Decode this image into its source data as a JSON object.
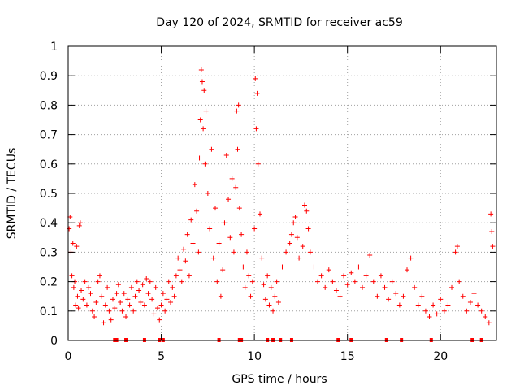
{
  "chart_data": {
    "type": "scatter",
    "title": "Day 120 of 2024, SRMTID for receiver ac59",
    "xlabel": "GPS time / hours",
    "ylabel": "SRMTID / TECUs",
    "xlim": [
      0,
      23
    ],
    "ylim": [
      0,
      1
    ],
    "xticks": [
      0,
      5,
      10,
      15,
      20
    ],
    "xtick_labels": [
      "0",
      "5",
      "10",
      "15",
      "20"
    ],
    "yticks": [
      0,
      0.1,
      0.2,
      0.3,
      0.4,
      0.5,
      0.6,
      0.7,
      0.8,
      0.9,
      1
    ],
    "ytick_labels": [
      "0",
      "0.1",
      "0.2",
      "0.3",
      "0.4",
      "0.5",
      "0.6",
      "0.7",
      "0.8",
      "0.9",
      "1"
    ],
    "grid": true,
    "marker": "+",
    "series_color": "#ff0000",
    "series": [
      {
        "name": "SRMTID",
        "points": [
          [
            0.05,
            0.38
          ],
          [
            0.1,
            0.42
          ],
          [
            0.15,
            0.3
          ],
          [
            0.2,
            0.22
          ],
          [
            0.25,
            0.33
          ],
          [
            0.3,
            0.18
          ],
          [
            0.35,
            0.2
          ],
          [
            0.4,
            0.12
          ],
          [
            0.45,
            0.32
          ],
          [
            0.5,
            0.15
          ],
          [
            0.55,
            0.11
          ],
          [
            0.6,
            0.39
          ],
          [
            0.65,
            0.4
          ],
          [
            0.7,
            0.17
          ],
          [
            0.8,
            0.14
          ],
          [
            0.9,
            0.2
          ],
          [
            1.0,
            0.12
          ],
          [
            1.1,
            0.18
          ],
          [
            1.2,
            0.16
          ],
          [
            1.3,
            0.1
          ],
          [
            1.4,
            0.08
          ],
          [
            1.5,
            0.13
          ],
          [
            1.6,
            0.2
          ],
          [
            1.7,
            0.22
          ],
          [
            1.8,
            0.15
          ],
          [
            1.9,
            0.06
          ],
          [
            2.0,
            0.12
          ],
          [
            2.1,
            0.18
          ],
          [
            2.2,
            0.1
          ],
          [
            2.3,
            0.07
          ],
          [
            2.4,
            0.14
          ],
          [
            2.5,
            0.11
          ],
          [
            2.6,
            0.16
          ],
          [
            2.7,
            0.19
          ],
          [
            2.8,
            0.13
          ],
          [
            2.9,
            0.1
          ],
          [
            3.0,
            0.16
          ],
          [
            3.1,
            0.08
          ],
          [
            3.2,
            0.14
          ],
          [
            3.3,
            0.12
          ],
          [
            3.4,
            0.18
          ],
          [
            3.5,
            0.1
          ],
          [
            3.6,
            0.15
          ],
          [
            3.7,
            0.2
          ],
          [
            3.8,
            0.17
          ],
          [
            3.9,
            0.13
          ],
          [
            4.0,
            0.19
          ],
          [
            4.1,
            0.12
          ],
          [
            4.2,
            0.21
          ],
          [
            4.3,
            0.16
          ],
          [
            4.4,
            0.2
          ],
          [
            4.5,
            0.14
          ],
          [
            4.6,
            0.09
          ],
          [
            4.7,
            0.18
          ],
          [
            4.8,
            0.11
          ],
          [
            4.9,
            0.07
          ],
          [
            5.0,
            0.12
          ],
          [
            5.1,
            0.16
          ],
          [
            5.2,
            0.1
          ],
          [
            5.3,
            0.14
          ],
          [
            5.4,
            0.2
          ],
          [
            5.5,
            0.13
          ],
          [
            5.6,
            0.18
          ],
          [
            5.7,
            0.15
          ],
          [
            5.8,
            0.22
          ],
          [
            5.9,
            0.28
          ],
          [
            6.0,
            0.24
          ],
          [
            6.1,
            0.2
          ],
          [
            6.2,
            0.31
          ],
          [
            6.3,
            0.27
          ],
          [
            6.4,
            0.36
          ],
          [
            6.5,
            0.22
          ],
          [
            6.6,
            0.41
          ],
          [
            6.7,
            0.33
          ],
          [
            6.8,
            0.53
          ],
          [
            6.9,
            0.44
          ],
          [
            7.0,
            0.3
          ],
          [
            7.05,
            0.62
          ],
          [
            7.1,
            0.75
          ],
          [
            7.15,
            0.92
          ],
          [
            7.2,
            0.88
          ],
          [
            7.25,
            0.72
          ],
          [
            7.3,
            0.85
          ],
          [
            7.35,
            0.6
          ],
          [
            7.4,
            0.78
          ],
          [
            7.5,
            0.5
          ],
          [
            7.6,
            0.38
          ],
          [
            7.7,
            0.65
          ],
          [
            7.8,
            0.28
          ],
          [
            7.9,
            0.45
          ],
          [
            8.0,
            0.2
          ],
          [
            8.1,
            0.33
          ],
          [
            8.2,
            0.15
          ],
          [
            8.3,
            0.24
          ],
          [
            8.4,
            0.4
          ],
          [
            8.5,
            0.63
          ],
          [
            8.6,
            0.48
          ],
          [
            8.7,
            0.35
          ],
          [
            8.8,
            0.55
          ],
          [
            8.9,
            0.3
          ],
          [
            9.0,
            0.52
          ],
          [
            9.05,
            0.78
          ],
          [
            9.1,
            0.65
          ],
          [
            9.15,
            0.8
          ],
          [
            9.2,
            0.45
          ],
          [
            9.3,
            0.36
          ],
          [
            9.4,
            0.25
          ],
          [
            9.5,
            0.18
          ],
          [
            9.6,
            0.3
          ],
          [
            9.7,
            0.22
          ],
          [
            9.8,
            0.15
          ],
          [
            9.9,
            0.2
          ],
          [
            10.0,
            0.38
          ],
          [
            10.05,
            0.89
          ],
          [
            10.1,
            0.72
          ],
          [
            10.15,
            0.84
          ],
          [
            10.2,
            0.6
          ],
          [
            10.3,
            0.43
          ],
          [
            10.4,
            0.28
          ],
          [
            10.5,
            0.19
          ],
          [
            10.6,
            0.14
          ],
          [
            10.7,
            0.22
          ],
          [
            10.8,
            0.12
          ],
          [
            10.9,
            0.18
          ],
          [
            11.0,
            0.1
          ],
          [
            11.1,
            0.15
          ],
          [
            11.2,
            0.2
          ],
          [
            11.3,
            0.13
          ],
          [
            11.5,
            0.25
          ],
          [
            11.7,
            0.3
          ],
          [
            11.9,
            0.33
          ],
          [
            12.0,
            0.36
          ],
          [
            12.1,
            0.4
          ],
          [
            12.2,
            0.42
          ],
          [
            12.3,
            0.35
          ],
          [
            12.4,
            0.28
          ],
          [
            12.6,
            0.32
          ],
          [
            12.7,
            0.46
          ],
          [
            12.8,
            0.44
          ],
          [
            12.9,
            0.38
          ],
          [
            13.0,
            0.3
          ],
          [
            13.2,
            0.25
          ],
          [
            13.4,
            0.2
          ],
          [
            13.6,
            0.22
          ],
          [
            13.8,
            0.18
          ],
          [
            14.0,
            0.24
          ],
          [
            14.2,
            0.2
          ],
          [
            14.4,
            0.17
          ],
          [
            14.6,
            0.15
          ],
          [
            14.8,
            0.22
          ],
          [
            15.0,
            0.19
          ],
          [
            15.2,
            0.23
          ],
          [
            15.4,
            0.2
          ],
          [
            15.6,
            0.25
          ],
          [
            15.8,
            0.18
          ],
          [
            16.0,
            0.22
          ],
          [
            16.2,
            0.29
          ],
          [
            16.4,
            0.2
          ],
          [
            16.6,
            0.15
          ],
          [
            16.8,
            0.22
          ],
          [
            17.0,
            0.18
          ],
          [
            17.2,
            0.14
          ],
          [
            17.4,
            0.2
          ],
          [
            17.6,
            0.16
          ],
          [
            17.8,
            0.12
          ],
          [
            18.0,
            0.15
          ],
          [
            18.2,
            0.24
          ],
          [
            18.4,
            0.28
          ],
          [
            18.6,
            0.18
          ],
          [
            18.8,
            0.12
          ],
          [
            19.0,
            0.15
          ],
          [
            19.2,
            0.1
          ],
          [
            19.4,
            0.08
          ],
          [
            19.6,
            0.12
          ],
          [
            19.8,
            0.09
          ],
          [
            20.0,
            0.14
          ],
          [
            20.2,
            0.1
          ],
          [
            20.4,
            0.12
          ],
          [
            20.6,
            0.18
          ],
          [
            20.8,
            0.3
          ],
          [
            20.9,
            0.32
          ],
          [
            21.0,
            0.2
          ],
          [
            21.2,
            0.15
          ],
          [
            21.4,
            0.1
          ],
          [
            21.6,
            0.13
          ],
          [
            21.8,
            0.16
          ],
          [
            22.0,
            0.12
          ],
          [
            22.2,
            0.1
          ],
          [
            22.4,
            0.08
          ],
          [
            22.6,
            0.06
          ],
          [
            22.7,
            0.43
          ],
          [
            22.75,
            0.37
          ],
          [
            22.8,
            0.32
          ]
        ]
      }
    ],
    "bottom_markers_x": [
      2.5,
      2.6,
      3.1,
      4.1,
      4.9,
      5.1,
      8.1,
      9.2,
      9.3,
      10.7,
      11.0,
      11.4,
      12.0,
      14.5,
      15.2,
      17.1,
      17.9,
      19.5,
      21.7,
      22.2
    ]
  }
}
